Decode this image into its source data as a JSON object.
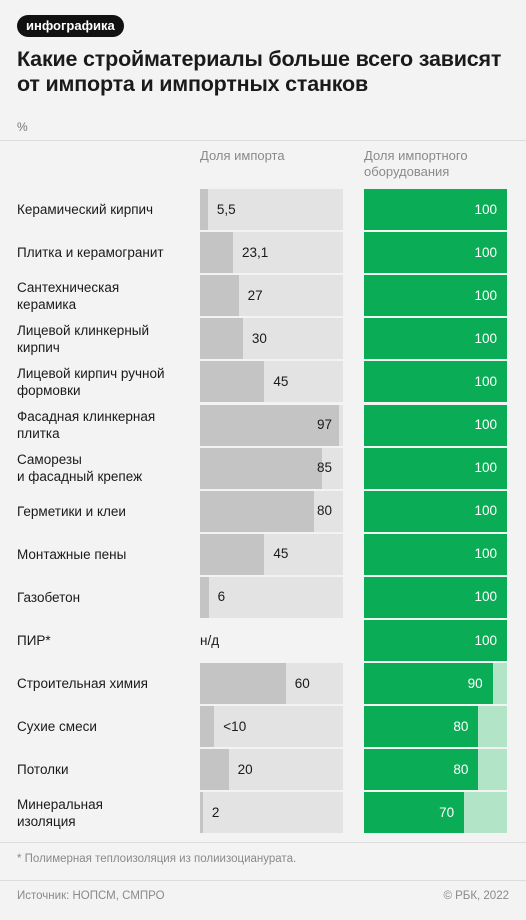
{
  "header": {
    "badge": "инфографика",
    "title": "Какие стройматериалы больше всего зависят от импорта и импортных станков",
    "unit": "%"
  },
  "columns": {
    "import_header": "Доля импорта",
    "equipment_header": "Доля импортного оборудования"
  },
  "chart_data": {
    "type": "bar",
    "orientation": "horizontal",
    "xlim": [
      0,
      100
    ],
    "categories": [
      "Керамический кирпич",
      "Плитка и керамогранит",
      "Сантехническая керамика",
      "Лицевой клинкерный кирпич",
      "Лицевой кирпич ручной формовки",
      "Фасадная клинкерная плитка",
      "Саморезы и фасадный крепеж",
      "Герметики и клеи",
      "Монтажные пены",
      "Газобетон",
      "ПИР*",
      "Строительная химия",
      "Сухие смеси",
      "Потолки",
      "Минеральная изоляция"
    ],
    "label_lines": [
      [
        "Керамический кирпич"
      ],
      [
        "Плитка и керамогранит"
      ],
      [
        "Сантехническая",
        "керамика"
      ],
      [
        "Лицевой клинкерный",
        "кирпич"
      ],
      [
        "Лицевой кирпич ручной",
        "формовки"
      ],
      [
        "Фасадная клинкерная",
        "плитка"
      ],
      [
        "Саморезы",
        "и фасадный крепеж"
      ],
      [
        "Герметики и клеи"
      ],
      [
        "Монтажные пены"
      ],
      [
        "Газобетон"
      ],
      [
        "ПИР*"
      ],
      [
        "Строительная химия"
      ],
      [
        "Сухие смеси"
      ],
      [
        "Потолки"
      ],
      [
        "Минеральная",
        "изоляция"
      ]
    ],
    "series": [
      {
        "name": "Доля импорта",
        "values": [
          5.5,
          23.1,
          27,
          30,
          45,
          97,
          85,
          80,
          45,
          6,
          null,
          60,
          10,
          20,
          2
        ],
        "labels": [
          "5,5",
          "23,1",
          "27",
          "30",
          "45",
          "97",
          "85",
          "80",
          "45",
          "6",
          "н/д",
          "60",
          "<10",
          "20",
          "2"
        ]
      },
      {
        "name": "Доля импортного оборудования",
        "values": [
          100,
          100,
          100,
          100,
          100,
          100,
          100,
          100,
          100,
          100,
          100,
          90,
          80,
          80,
          70
        ],
        "labels": [
          "100",
          "100",
          "100",
          "100",
          "100",
          "100",
          "100",
          "100",
          "100",
          "100",
          "100",
          "90",
          "80",
          "80",
          "70"
        ]
      }
    ]
  },
  "footer": {
    "footnote": "* Полимерная теплоизоляция из полиизоцианурата.",
    "source": "Источник: НОПСМ, СМПРО",
    "copyright": "© РБК, 2022"
  },
  "colors": {
    "import_bar": "#c4c4c4",
    "import_track": "#e3e3e3",
    "equipment_bar": "#0aad55",
    "equipment_track": "#b2e4c7"
  }
}
